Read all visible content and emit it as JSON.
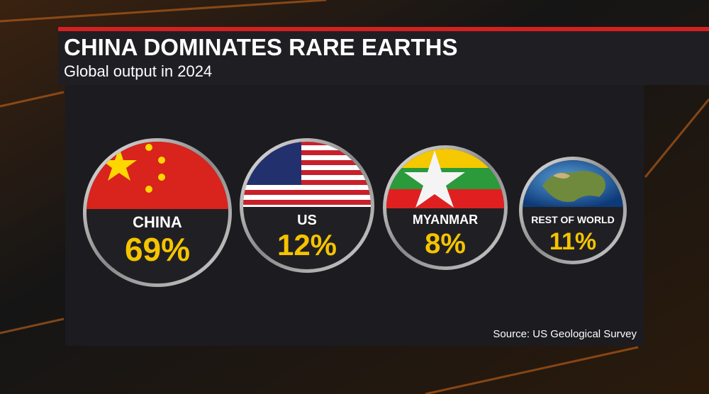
{
  "header": {
    "title": "CHINA DOMINATES RARE EARTHS",
    "subtitle": "Global output in 2024"
  },
  "items": [
    {
      "label": "CHINA",
      "value": "69%"
    },
    {
      "label": "US",
      "value": "12%"
    },
    {
      "label": "MYANMAR",
      "value": "8%"
    },
    {
      "label": "REST OF WORLD",
      "value": "11%"
    }
  ],
  "source": "Source: US Geological Survey"
}
